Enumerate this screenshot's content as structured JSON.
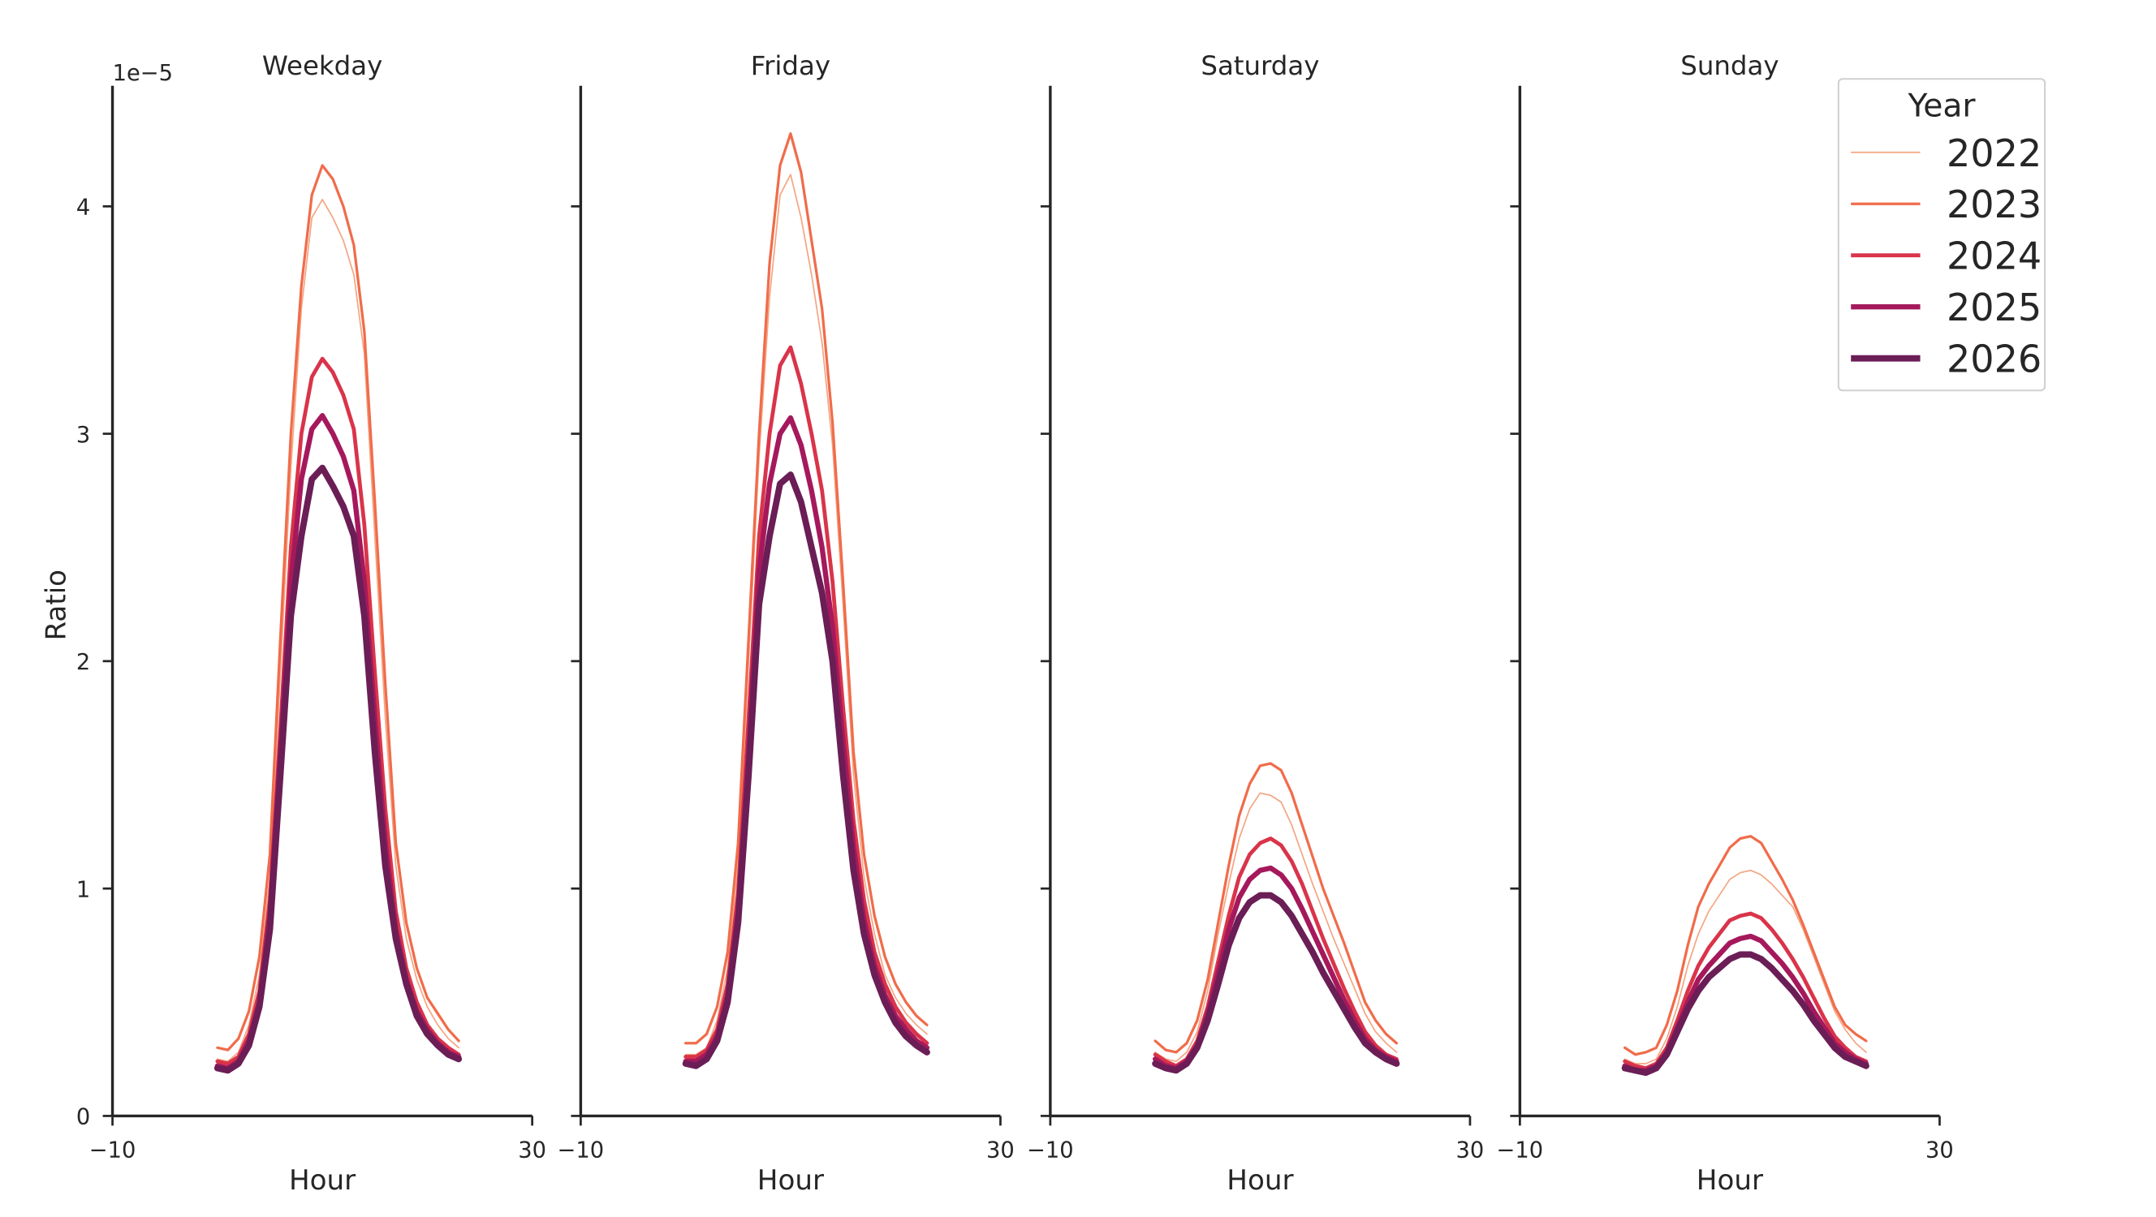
{
  "chart_data": [
    {
      "type": "line",
      "title": "Weekday",
      "x_label": "Hour",
      "y_label": "Ratio",
      "y_offset_label": "1e−5",
      "x": [
        0,
        1,
        2,
        3,
        4,
        5,
        6,
        7,
        8,
        9,
        10,
        11,
        12,
        13,
        14,
        15,
        16,
        17,
        18,
        19,
        20,
        21,
        22,
        23
      ],
      "xlim": [
        -10,
        30
      ],
      "xticks": [
        {
          "value": -10,
          "label": "−10"
        },
        30
      ],
      "ylim": [
        0,
        4.53
      ],
      "yticks": [
        0,
        1,
        2,
        3,
        4
      ],
      "show_ytick_labels": true,
      "series": [
        {
          "name": "2022",
          "color": "#f4a582",
          "values": [
            0.25,
            0.24,
            0.28,
            0.4,
            0.62,
            1.05,
            1.95,
            2.85,
            3.55,
            3.95,
            4.03,
            3.95,
            3.85,
            3.7,
            3.35,
            2.55,
            1.75,
            1.1,
            0.78,
            0.6,
            0.48,
            0.4,
            0.34,
            0.3
          ]
        },
        {
          "name": "2023",
          "color": "#f06c4b",
          "values": [
            0.3,
            0.29,
            0.34,
            0.46,
            0.7,
            1.15,
            2.1,
            3.0,
            3.65,
            4.05,
            4.18,
            4.12,
            4.0,
            3.83,
            3.45,
            2.7,
            1.9,
            1.2,
            0.85,
            0.65,
            0.52,
            0.45,
            0.38,
            0.33
          ]
        },
        {
          "name": "2024",
          "color": "#d9344a",
          "values": [
            0.24,
            0.23,
            0.26,
            0.36,
            0.55,
            0.95,
            1.7,
            2.5,
            3.0,
            3.25,
            3.33,
            3.27,
            3.17,
            3.02,
            2.6,
            1.95,
            1.35,
            0.9,
            0.65,
            0.5,
            0.4,
            0.34,
            0.3,
            0.27
          ]
        },
        {
          "name": "2025",
          "color": "#a5195c",
          "values": [
            0.22,
            0.21,
            0.24,
            0.33,
            0.5,
            0.88,
            1.6,
            2.35,
            2.8,
            3.02,
            3.08,
            3.0,
            2.9,
            2.75,
            2.35,
            1.75,
            1.2,
            0.82,
            0.6,
            0.46,
            0.38,
            0.32,
            0.28,
            0.26
          ]
        },
        {
          "name": "2026",
          "color": "#6b1d56",
          "values": [
            0.21,
            0.2,
            0.23,
            0.31,
            0.48,
            0.82,
            1.5,
            2.2,
            2.55,
            2.8,
            2.85,
            2.77,
            2.68,
            2.55,
            2.2,
            1.6,
            1.1,
            0.78,
            0.58,
            0.44,
            0.36,
            0.31,
            0.27,
            0.25
          ]
        }
      ]
    },
    {
      "type": "line",
      "title": "Friday",
      "x_label": "Hour",
      "x": [
        0,
        1,
        2,
        3,
        4,
        5,
        6,
        7,
        8,
        9,
        10,
        11,
        12,
        13,
        14,
        15,
        16,
        17,
        18,
        19,
        20,
        21,
        22,
        23
      ],
      "xlim": [
        -10,
        30
      ],
      "xticks": [
        {
          "value": -10,
          "label": "−10"
        },
        30
      ],
      "ylim": [
        0,
        4.53
      ],
      "yticks": [
        0,
        1,
        2,
        3,
        4
      ],
      "show_ytick_labels": false,
      "series": [
        {
          "name": "2022",
          "color": "#f4a582",
          "values": [
            0.27,
            0.27,
            0.3,
            0.42,
            0.65,
            1.1,
            2.0,
            2.9,
            3.6,
            4.05,
            4.14,
            3.95,
            3.7,
            3.4,
            2.95,
            2.25,
            1.5,
            1.05,
            0.8,
            0.62,
            0.52,
            0.45,
            0.4,
            0.36
          ]
        },
        {
          "name": "2023",
          "color": "#f06c4b",
          "values": [
            0.32,
            0.32,
            0.36,
            0.48,
            0.72,
            1.2,
            2.1,
            3.0,
            3.75,
            4.18,
            4.32,
            4.15,
            3.85,
            3.55,
            3.05,
            2.35,
            1.6,
            1.15,
            0.88,
            0.7,
            0.58,
            0.5,
            0.44,
            0.4
          ]
        },
        {
          "name": "2024",
          "color": "#d9344a",
          "values": [
            0.26,
            0.26,
            0.29,
            0.38,
            0.58,
            0.98,
            1.75,
            2.55,
            3.0,
            3.3,
            3.38,
            3.22,
            3.0,
            2.75,
            2.35,
            1.8,
            1.3,
            0.95,
            0.72,
            0.58,
            0.48,
            0.41,
            0.36,
            0.32
          ]
        },
        {
          "name": "2025",
          "color": "#a5195c",
          "values": [
            0.24,
            0.24,
            0.27,
            0.35,
            0.53,
            0.9,
            1.6,
            2.4,
            2.78,
            3.0,
            3.07,
            2.95,
            2.75,
            2.5,
            2.15,
            1.65,
            1.18,
            0.86,
            0.66,
            0.53,
            0.44,
            0.38,
            0.33,
            0.3
          ]
        },
        {
          "name": "2026",
          "color": "#6b1d56",
          "values": [
            0.23,
            0.22,
            0.25,
            0.33,
            0.5,
            0.85,
            1.5,
            2.25,
            2.55,
            2.78,
            2.82,
            2.7,
            2.5,
            2.3,
            2.0,
            1.5,
            1.08,
            0.8,
            0.62,
            0.5,
            0.41,
            0.35,
            0.31,
            0.28
          ]
        }
      ]
    },
    {
      "type": "line",
      "title": "Saturday",
      "x_label": "Hour",
      "x": [
        0,
        1,
        2,
        3,
        4,
        5,
        6,
        7,
        8,
        9,
        10,
        11,
        12,
        13,
        14,
        15,
        16,
        17,
        18,
        19,
        20,
        21,
        22,
        23
      ],
      "xlim": [
        -10,
        30
      ],
      "xticks": [
        {
          "value": -10,
          "label": "−10"
        },
        30
      ],
      "ylim": [
        0,
        4.53
      ],
      "yticks": [
        0,
        1,
        2,
        3,
        4
      ],
      "show_ytick_labels": false,
      "series": [
        {
          "name": "2022",
          "color": "#f4a582",
          "values": [
            0.28,
            0.25,
            0.24,
            0.28,
            0.37,
            0.55,
            0.8,
            1.02,
            1.22,
            1.35,
            1.42,
            1.41,
            1.38,
            1.28,
            1.15,
            1.02,
            0.9,
            0.78,
            0.67,
            0.56,
            0.45,
            0.37,
            0.32,
            0.28
          ]
        },
        {
          "name": "2023",
          "color": "#f06c4b",
          "values": [
            0.33,
            0.29,
            0.28,
            0.32,
            0.42,
            0.6,
            0.85,
            1.1,
            1.32,
            1.46,
            1.54,
            1.55,
            1.52,
            1.42,
            1.28,
            1.14,
            1.0,
            0.88,
            0.76,
            0.63,
            0.5,
            0.42,
            0.36,
            0.32
          ]
        },
        {
          "name": "2024",
          "color": "#d9344a",
          "values": [
            0.27,
            0.24,
            0.22,
            0.25,
            0.33,
            0.48,
            0.68,
            0.88,
            1.05,
            1.15,
            1.2,
            1.22,
            1.19,
            1.12,
            1.02,
            0.9,
            0.78,
            0.67,
            0.56,
            0.46,
            0.37,
            0.31,
            0.27,
            0.25
          ]
        },
        {
          "name": "2025",
          "color": "#a5195c",
          "values": [
            0.25,
            0.22,
            0.21,
            0.24,
            0.31,
            0.45,
            0.63,
            0.82,
            0.96,
            1.04,
            1.08,
            1.09,
            1.06,
            1.0,
            0.91,
            0.81,
            0.71,
            0.61,
            0.51,
            0.42,
            0.34,
            0.29,
            0.26,
            0.24
          ]
        },
        {
          "name": "2026",
          "color": "#6b1d56",
          "values": [
            0.23,
            0.21,
            0.2,
            0.23,
            0.3,
            0.42,
            0.58,
            0.75,
            0.87,
            0.94,
            0.97,
            0.97,
            0.94,
            0.88,
            0.8,
            0.72,
            0.63,
            0.55,
            0.47,
            0.39,
            0.32,
            0.28,
            0.25,
            0.23
          ]
        }
      ]
    },
    {
      "type": "line",
      "title": "Sunday",
      "x_label": "Hour",
      "x": [
        0,
        1,
        2,
        3,
        4,
        5,
        6,
        7,
        8,
        9,
        10,
        11,
        12,
        13,
        14,
        15,
        16,
        17,
        18,
        19,
        20,
        21,
        22,
        23
      ],
      "xlim": [
        -10,
        30
      ],
      "xticks": [
        {
          "value": -10,
          "label": "−10"
        },
        30
      ],
      "ylim": [
        0,
        4.53
      ],
      "yticks": [
        0,
        1,
        2,
        3,
        4
      ],
      "show_ytick_labels": false,
      "legend": "upper right",
      "legend_title": "Year",
      "series": [
        {
          "name": "2022",
          "color": "#f4a582",
          "values": [
            0.25,
            0.23,
            0.23,
            0.25,
            0.34,
            0.48,
            0.66,
            0.8,
            0.9,
            0.97,
            1.04,
            1.07,
            1.08,
            1.06,
            1.02,
            0.97,
            0.92,
            0.82,
            0.7,
            0.58,
            0.46,
            0.38,
            0.32,
            0.28
          ]
        },
        {
          "name": "2023",
          "color": "#f06c4b",
          "values": [
            0.3,
            0.27,
            0.28,
            0.3,
            0.4,
            0.55,
            0.75,
            0.92,
            1.02,
            1.1,
            1.18,
            1.22,
            1.23,
            1.2,
            1.12,
            1.04,
            0.95,
            0.84,
            0.72,
            0.6,
            0.48,
            0.4,
            0.36,
            0.33
          ]
        },
        {
          "name": "2024",
          "color": "#d9344a",
          "values": [
            0.24,
            0.22,
            0.21,
            0.23,
            0.3,
            0.42,
            0.55,
            0.66,
            0.74,
            0.8,
            0.86,
            0.88,
            0.89,
            0.87,
            0.82,
            0.76,
            0.69,
            0.61,
            0.52,
            0.43,
            0.35,
            0.3,
            0.26,
            0.24
          ]
        },
        {
          "name": "2025",
          "color": "#a5195c",
          "values": [
            0.22,
            0.2,
            0.2,
            0.22,
            0.28,
            0.39,
            0.5,
            0.6,
            0.66,
            0.71,
            0.76,
            0.78,
            0.79,
            0.77,
            0.72,
            0.67,
            0.61,
            0.54,
            0.46,
            0.39,
            0.32,
            0.28,
            0.25,
            0.23
          ]
        },
        {
          "name": "2026",
          "color": "#6b1d56",
          "values": [
            0.21,
            0.2,
            0.19,
            0.21,
            0.27,
            0.37,
            0.47,
            0.55,
            0.61,
            0.65,
            0.69,
            0.71,
            0.71,
            0.69,
            0.65,
            0.6,
            0.55,
            0.49,
            0.42,
            0.36,
            0.3,
            0.26,
            0.24,
            0.22
          ]
        }
      ]
    }
  ]
}
